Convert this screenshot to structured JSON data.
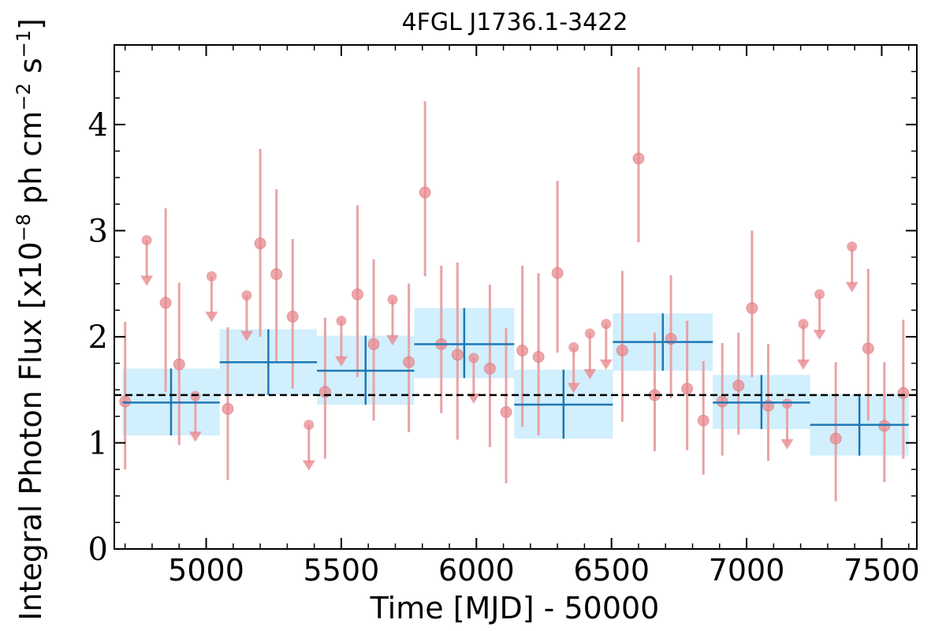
{
  "chart_data": {
    "type": "scatter",
    "title": "4FGL J1736.1-3422",
    "xlabel": "Time [MJD] - 50000",
    "ylabel": "Integral Photon Flux [x10",
    "ylabel_exp1": "−8",
    "ylabel_mid": " ph cm",
    "ylabel_exp2": "−2",
    "ylabel_mid2": " s",
    "ylabel_exp3": "−1",
    "ylabel_end": "]",
    "xlim": [
      4660,
      7630
    ],
    "ylim": [
      0,
      4.75
    ],
    "xticks": [
      5000,
      5500,
      6000,
      6500,
      7000,
      7500
    ],
    "xtick_labels": [
      "5000",
      "5500",
      "6000",
      "6500",
      "7000",
      "7500"
    ],
    "yticks": [
      0,
      1,
      2,
      3,
      4
    ],
    "ytick_labels": [
      "0",
      "1",
      "2",
      "3",
      "4"
    ],
    "mean_flux": 1.45,
    "colors": {
      "points": "#e8898f",
      "errorbars": "#e8a3a6",
      "bins": "#1f77b4",
      "bin_band": "#c9ecfc",
      "mean_line": "#000000"
    },
    "detections": [
      {
        "x": 4700,
        "y": 1.39,
        "lo": 0.75,
        "hi": 2.14
      },
      {
        "x": 4850,
        "y": 2.32,
        "lo": 1.48,
        "hi": 3.21
      },
      {
        "x": 4900,
        "y": 1.74,
        "lo": 0.98,
        "hi": 2.51
      },
      {
        "x": 5080,
        "y": 1.32,
        "lo": 0.65,
        "hi": 2.09
      },
      {
        "x": 5200,
        "y": 2.88,
        "lo": 2.0,
        "hi": 3.77
      },
      {
        "x": 5260,
        "y": 2.59,
        "lo": 1.76,
        "hi": 3.39
      },
      {
        "x": 5320,
        "y": 2.19,
        "lo": 1.51,
        "hi": 2.92
      },
      {
        "x": 5440,
        "y": 1.48,
        "lo": 0.85,
        "hi": 2.18
      },
      {
        "x": 5560,
        "y": 2.4,
        "lo": 1.62,
        "hi": 3.24
      },
      {
        "x": 5620,
        "y": 1.93,
        "lo": 1.21,
        "hi": 2.73
      },
      {
        "x": 5750,
        "y": 1.76,
        "lo": 1.1,
        "hi": 2.5
      },
      {
        "x": 5810,
        "y": 3.36,
        "lo": 2.57,
        "hi": 4.22
      },
      {
        "x": 5870,
        "y": 1.93,
        "lo": 1.28,
        "hi": 2.67
      },
      {
        "x": 5930,
        "y": 1.83,
        "lo": 1.03,
        "hi": 2.7
      },
      {
        "x": 6050,
        "y": 1.7,
        "lo": 0.96,
        "hi": 2.49
      },
      {
        "x": 6110,
        "y": 1.29,
        "lo": 0.62,
        "hi": 2.08
      },
      {
        "x": 6170,
        "y": 1.87,
        "lo": 1.15,
        "hi": 2.67
      },
      {
        "x": 6230,
        "y": 1.81,
        "lo": 1.07,
        "hi": 2.6
      },
      {
        "x": 6300,
        "y": 2.6,
        "lo": 1.85,
        "hi": 3.47
      },
      {
        "x": 6540,
        "y": 1.87,
        "lo": 1.2,
        "hi": 2.62
      },
      {
        "x": 6600,
        "y": 3.68,
        "lo": 2.89,
        "hi": 4.54
      },
      {
        "x": 6660,
        "y": 1.45,
        "lo": 0.92,
        "hi": 2.04
      },
      {
        "x": 6720,
        "y": 1.98,
        "lo": 1.42,
        "hi": 2.58
      },
      {
        "x": 6780,
        "y": 1.51,
        "lo": 0.93,
        "hi": 2.15
      },
      {
        "x": 6840,
        "y": 1.21,
        "lo": 0.7,
        "hi": 1.77
      },
      {
        "x": 6910,
        "y": 1.39,
        "lo": 0.88,
        "hi": 1.94
      },
      {
        "x": 6970,
        "y": 1.54,
        "lo": 1.08,
        "hi": 2.04
      },
      {
        "x": 7020,
        "y": 2.27,
        "lo": 1.62,
        "hi": 3.0
      },
      {
        "x": 7080,
        "y": 1.35,
        "lo": 0.83,
        "hi": 1.93
      },
      {
        "x": 7330,
        "y": 1.04,
        "lo": 0.45,
        "hi": 1.76
      },
      {
        "x": 7450,
        "y": 1.89,
        "lo": 1.21,
        "hi": 2.64
      },
      {
        "x": 7510,
        "y": 1.16,
        "lo": 0.63,
        "hi": 1.76
      },
      {
        "x": 7580,
        "y": 1.47,
        "lo": 0.85,
        "hi": 2.16
      }
    ],
    "upper_limits": [
      {
        "x": 4780,
        "y": 2.91
      },
      {
        "x": 4960,
        "y": 1.44
      },
      {
        "x": 5020,
        "y": 2.57
      },
      {
        "x": 5150,
        "y": 2.39
      },
      {
        "x": 5380,
        "y": 1.17
      },
      {
        "x": 5500,
        "y": 2.15
      },
      {
        "x": 5690,
        "y": 2.35
      },
      {
        "x": 5990,
        "y": 1.8
      },
      {
        "x": 6360,
        "y": 1.9
      },
      {
        "x": 6420,
        "y": 2.03
      },
      {
        "x": 6480,
        "y": 2.12
      },
      {
        "x": 7150,
        "y": 1.37
      },
      {
        "x": 7210,
        "y": 2.12
      },
      {
        "x": 7270,
        "y": 2.4
      },
      {
        "x": 7390,
        "y": 2.85
      }
    ],
    "bins": [
      {
        "x0": 4690,
        "x1": 5050,
        "y": 1.38,
        "lo": 1.07,
        "hi": 1.7
      },
      {
        "x0": 5050,
        "x1": 5410,
        "y": 1.76,
        "lo": 1.45,
        "hi": 2.07
      },
      {
        "x0": 5410,
        "x1": 5770,
        "y": 1.68,
        "lo": 1.36,
        "hi": 2.01
      },
      {
        "x0": 5770,
        "x1": 6140,
        "y": 1.93,
        "lo": 1.61,
        "hi": 2.27
      },
      {
        "x0": 6140,
        "x1": 6505,
        "y": 1.36,
        "lo": 1.04,
        "hi": 1.69
      },
      {
        "x0": 6505,
        "x1": 6875,
        "y": 1.95,
        "lo": 1.68,
        "hi": 2.22
      },
      {
        "x0": 6875,
        "x1": 7235,
        "y": 1.38,
        "lo": 1.13,
        "hi": 1.64
      },
      {
        "x0": 7235,
        "x1": 7600,
        "y": 1.17,
        "lo": 0.88,
        "hi": 1.46
      }
    ]
  }
}
